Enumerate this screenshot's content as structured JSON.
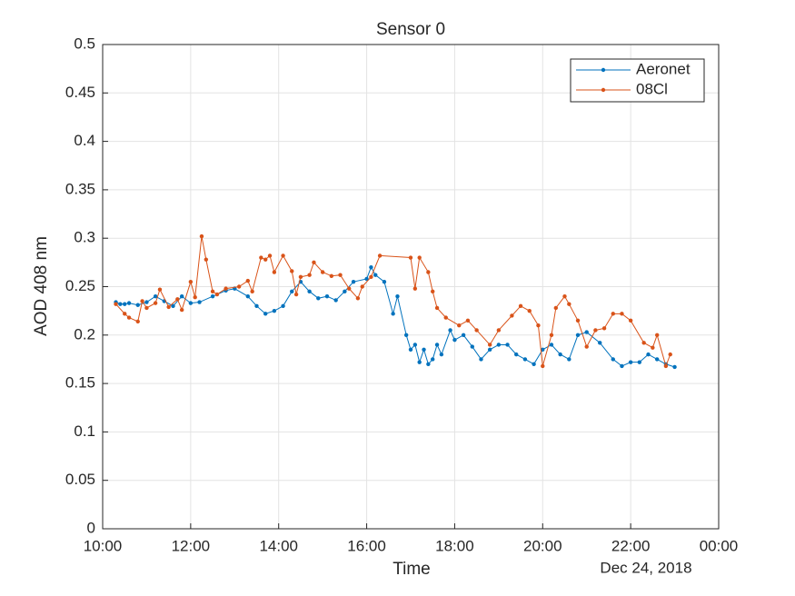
{
  "chart_data": {
    "type": "line",
    "title": "Sensor 0",
    "x_label": "Time",
    "x_annotation": "Dec 24, 2018",
    "y_label": "AOD 408 nm",
    "xlim": [
      10,
      24
    ],
    "xticks": [
      {
        "value": 10,
        "label": "10:00"
      },
      {
        "value": 12,
        "label": "12:00"
      },
      {
        "value": 14,
        "label": "14:00"
      },
      {
        "value": 16,
        "label": "16:00"
      },
      {
        "value": 18,
        "label": "18:00"
      },
      {
        "value": 20,
        "label": "20:00"
      },
      {
        "value": 22,
        "label": "22:00"
      },
      {
        "value": 24,
        "label": "00:00"
      }
    ],
    "ylim": [
      0,
      0.5
    ],
    "yticks": [
      0,
      0.05,
      0.1,
      0.15,
      0.2,
      0.25,
      0.3,
      0.35,
      0.4,
      0.45,
      0.5
    ],
    "grid": true,
    "legend": "top-right",
    "series": [
      {
        "name": "Aeronet",
        "color": "#0072bd",
        "x": [
          10.3,
          10.4,
          10.5,
          10.6,
          10.8,
          11.0,
          11.2,
          11.4,
          11.6,
          11.8,
          12.0,
          12.2,
          12.5,
          12.8,
          13.0,
          13.3,
          13.5,
          13.7,
          13.9,
          14.1,
          14.3,
          14.5,
          14.7,
          14.9,
          15.1,
          15.3,
          15.5,
          15.7,
          16.0,
          16.1,
          16.2,
          16.4,
          16.6,
          16.7,
          16.9,
          17.0,
          17.1,
          17.2,
          17.3,
          17.4,
          17.5,
          17.6,
          17.7,
          17.9,
          18.0,
          18.2,
          18.4,
          18.6,
          18.8,
          19.0,
          19.2,
          19.4,
          19.6,
          19.8,
          20.0,
          20.2,
          20.4,
          20.6,
          20.8,
          21.0,
          21.3,
          21.6,
          21.8,
          22.0,
          22.2,
          22.4,
          22.6,
          22.8,
          23.0
        ],
        "values": [
          0.234,
          0.232,
          0.232,
          0.233,
          0.231,
          0.234,
          0.24,
          0.235,
          0.23,
          0.24,
          0.233,
          0.234,
          0.24,
          0.246,
          0.248,
          0.24,
          0.23,
          0.222,
          0.225,
          0.23,
          0.245,
          0.255,
          0.245,
          0.238,
          0.24,
          0.236,
          0.245,
          0.255,
          0.258,
          0.27,
          0.262,
          0.255,
          0.222,
          0.24,
          0.2,
          0.185,
          0.19,
          0.172,
          0.185,
          0.17,
          0.175,
          0.19,
          0.18,
          0.205,
          0.195,
          0.2,
          0.188,
          0.175,
          0.185,
          0.19,
          0.19,
          0.18,
          0.175,
          0.17,
          0.185,
          0.19,
          0.18,
          0.175,
          0.2,
          0.203,
          0.192,
          0.175,
          0.168,
          0.172,
          0.172,
          0.18,
          0.175,
          0.17,
          0.167
        ]
      },
      {
        "name": "08Cl",
        "color": "#d95319",
        "x": [
          10.3,
          10.5,
          10.6,
          10.8,
          10.9,
          11.0,
          11.2,
          11.3,
          11.5,
          11.7,
          11.8,
          12.0,
          12.1,
          12.25,
          12.35,
          12.5,
          12.6,
          12.8,
          13.1,
          13.3,
          13.4,
          13.6,
          13.7,
          13.8,
          13.9,
          14.1,
          14.3,
          14.4,
          14.5,
          14.7,
          14.8,
          15.0,
          15.2,
          15.4,
          15.6,
          15.8,
          15.9,
          16.1,
          16.3,
          17.0,
          17.1,
          17.2,
          17.4,
          17.5,
          17.6,
          17.8,
          18.1,
          18.3,
          18.5,
          18.8,
          19.0,
          19.3,
          19.5,
          19.7,
          19.9,
          20.0,
          20.2,
          20.3,
          20.5,
          20.6,
          20.8,
          21.0,
          21.2,
          21.4,
          21.6,
          21.8,
          22.0,
          22.3,
          22.5,
          22.6,
          22.8,
          22.9
        ],
        "values": [
          0.232,
          0.222,
          0.218,
          0.214,
          0.235,
          0.228,
          0.233,
          0.247,
          0.229,
          0.237,
          0.226,
          0.255,
          0.239,
          0.302,
          0.278,
          0.245,
          0.242,
          0.248,
          0.25,
          0.256,
          0.245,
          0.28,
          0.278,
          0.282,
          0.265,
          0.282,
          0.266,
          0.242,
          0.26,
          0.262,
          0.275,
          0.265,
          0.261,
          0.262,
          0.248,
          0.238,
          0.25,
          0.26,
          0.282,
          0.28,
          0.248,
          0.28,
          0.265,
          0.245,
          0.228,
          0.218,
          0.21,
          0.215,
          0.205,
          0.19,
          0.205,
          0.22,
          0.23,
          0.225,
          0.21,
          0.168,
          0.2,
          0.228,
          0.24,
          0.232,
          0.215,
          0.188,
          0.205,
          0.207,
          0.222,
          0.222,
          0.215,
          0.192,
          0.187,
          0.2,
          0.168,
          0.18
        ]
      }
    ]
  }
}
